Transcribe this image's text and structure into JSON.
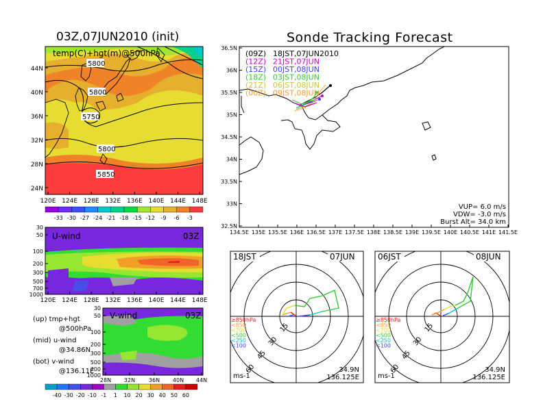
{
  "left_title": "03Z,07JUN2010 (init)",
  "right_title": "Sonde Tracking Forecast",
  "map500": {
    "label": "temp(C)+hgt(m)@500hPa",
    "lat_ticks": [
      "44N",
      "40N",
      "36N",
      "32N",
      "28N",
      "24N"
    ],
    "lon_ticks": [
      "120E",
      "124E",
      "128E",
      "132E",
      "136E",
      "140E",
      "144E",
      "148E"
    ],
    "contour_labels": [
      "5800",
      "5800",
      "5750",
      "5800",
      "5850"
    ],
    "colorbar_labels": [
      "-33",
      "-30",
      "-27",
      "-24",
      "-21",
      "-18",
      "-15",
      "-12",
      "-9",
      "-6",
      "-3"
    ],
    "colors": [
      "#9b00e0",
      "#6b2cf5",
      "#3c50f5",
      "#1e8cff",
      "#00c8c8",
      "#00d28c",
      "#00dc3c",
      "#a0e632",
      "#e6dc32",
      "#e6af2d",
      "#f08228",
      "#fa3c3c"
    ]
  },
  "uwind": {
    "label": "U-wind",
    "time": "03Z",
    "y_ticks": [
      "30",
      "50",
      "100",
      "200",
      "300",
      "500",
      "700",
      "1000"
    ],
    "x_ticks": [
      "120E",
      "124E",
      "128E",
      "132E",
      "136E",
      "140E",
      "144E",
      "148E"
    ]
  },
  "vwind": {
    "label": "V-wind",
    "time": "03Z",
    "y_ticks": [
      "30",
      "50",
      "100",
      "200",
      "300",
      "500",
      "700",
      "1000"
    ],
    "x_ticks": [
      "28N",
      "32N",
      "36N",
      "40N",
      "44N"
    ]
  },
  "legend_notes": [
    {
      "a": "(up)  tmp+hgt",
      "b": "@500hPa"
    },
    {
      "a": "(mid)  u-wind",
      "b": "@34.86N"
    },
    {
      "a": "(bot)  v-wind",
      "b": "@136.11E"
    }
  ],
  "wind_colorbar_labels": [
    "-40",
    "-30",
    "-20",
    "-10",
    "-1",
    "1",
    "10",
    "20",
    "30",
    "40",
    "50",
    "60"
  ],
  "wind_colors": [
    "#00a0c8",
    "#1e78ff",
    "#4650e6",
    "#7828dc",
    "#a000c8",
    "#a0a0a0",
    "#32dc32",
    "#96e632",
    "#e6dc32",
    "#f0a028",
    "#f06428",
    "#e61e1e",
    "#c80000"
  ],
  "track": {
    "lat_ticks": [
      "36.5N",
      "36N",
      "35.5N",
      "35N",
      "34.5N",
      "34N",
      "33.5N",
      "33N",
      "32.5N"
    ],
    "lon_ticks": [
      "134.5E",
      "135E",
      "135.5E",
      "136E",
      "136.5E",
      "137E",
      "137.5E",
      "138E",
      "138.5E",
      "139E",
      "139.5E",
      "140E",
      "140.5E",
      "141E",
      "141.5E"
    ],
    "legend": [
      {
        "code": "(09Z)",
        "label": "18JST,07JUN2010",
        "color": "#000000"
      },
      {
        "code": "(12Z)",
        "label": "21JST,07JUN",
        "color": "#c800c8"
      },
      {
        "code": "(15Z)",
        "label": "00JST,08JUN",
        "color": "#3c3cff"
      },
      {
        "code": "(18Z)",
        "label": "03JST,08JUN",
        "color": "#32c832"
      },
      {
        "code": "(21Z)",
        "label": "06JST,08JUN",
        "color": "#c8c832"
      },
      {
        "code": "(00Z)",
        "label": "09JST,08JUN",
        "color": "#f0a032"
      }
    ],
    "params": [
      "VUP=  6.0  m/s",
      "VDW= -3.0  m/s",
      "Burst Alt=  34.0  km"
    ]
  },
  "hodo1": {
    "time": "18JST",
    "date": "07JUN",
    "lat": "34.9N",
    "lon": "136.125E",
    "unit": "ms-1"
  },
  "hodo2": {
    "time": "06JST",
    "date": "08JUN",
    "lat": "34.9N",
    "lon": "136.125E",
    "unit": "ms-1"
  },
  "hodo_rings": [
    "15",
    "30",
    "45",
    "60"
  ],
  "hodo_legend": [
    {
      "label": "≥850hPa",
      "color": "#e61e1e"
    },
    {
      "label": "<850",
      "color": "#f0a028"
    },
    {
      "label": "<700",
      "color": "#e6dc32"
    },
    {
      "label": "<500",
      "color": "#32c832"
    },
    {
      "label": "<250",
      "color": "#00c8c8"
    },
    {
      "label": "<100",
      "color": "#3c3cff"
    }
  ]
}
